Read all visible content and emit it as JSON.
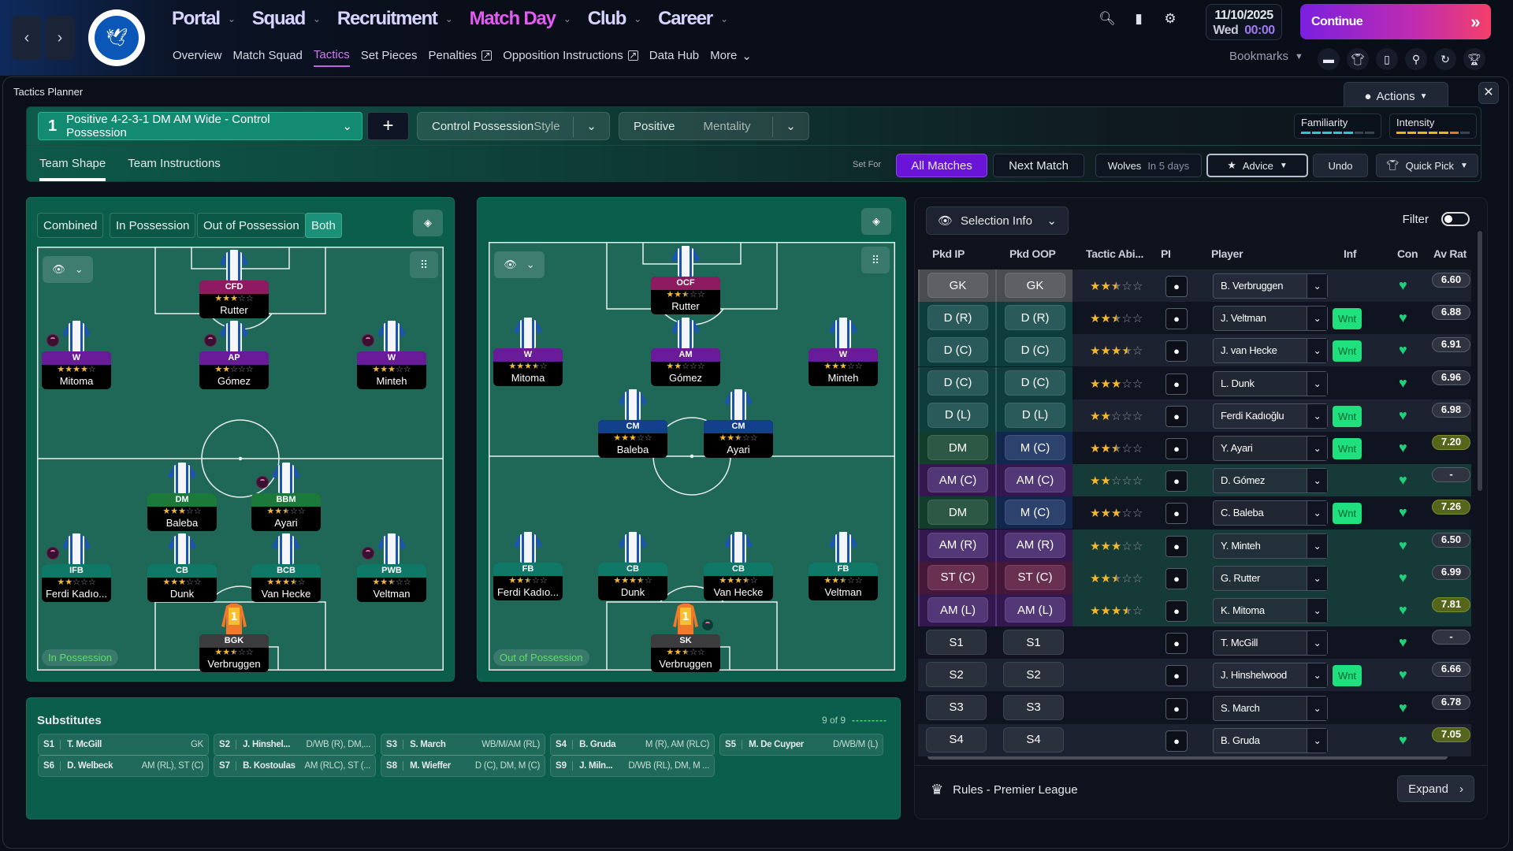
{
  "nav": {
    "back_icon": "chevron-left-icon",
    "forward_icon": "chevron-right-icon",
    "club_logo": "Brighton & Hove Albion",
    "main": [
      {
        "label": "Portal",
        "active": false
      },
      {
        "label": "Squad",
        "active": false
      },
      {
        "label": "Recruitment",
        "active": false
      },
      {
        "label": "Match Day",
        "active": true
      },
      {
        "label": "Club",
        "active": false
      },
      {
        "label": "Career",
        "active": false
      }
    ],
    "sub": [
      {
        "label": "Overview",
        "active": false,
        "external": false
      },
      {
        "label": "Match Squad",
        "active": false,
        "external": false
      },
      {
        "label": "Tactics",
        "active": true,
        "external": false
      },
      {
        "label": "Set Pieces",
        "active": false,
        "external": false
      },
      {
        "label": "Penalties",
        "active": false,
        "external": true
      },
      {
        "label": "Opposition Instructions",
        "active": false,
        "external": true
      },
      {
        "label": "Data Hub",
        "active": false,
        "external": false
      },
      {
        "label": "More",
        "active": false,
        "external": false
      }
    ],
    "date": "11/10/2025",
    "day": "Wed",
    "time": "00:00",
    "continue_label": "Continue",
    "bookmarks_label": "Bookmarks"
  },
  "planner": {
    "title": "Tactics Planner",
    "actions_label": "Actions",
    "tactic": {
      "slot": "1",
      "name": "Positive 4-2-3-1 DM AM Wide - Control Possession"
    },
    "style": {
      "value": "Control Possession",
      "label": "Style"
    },
    "mentality": {
      "value": "Positive",
      "label": "Mentality"
    },
    "familiarity": {
      "label": "Familiarity",
      "level": 5,
      "max": 7
    },
    "intensity": {
      "label": "Intensity",
      "level": 6,
      "max": 7
    },
    "tabs": [
      {
        "label": "Team Shape",
        "active": true
      },
      {
        "label": "Team Instructions",
        "active": false
      }
    ],
    "set_for_label": "Set For",
    "all_matches": "All Matches",
    "next_match": "Next Match",
    "opponent": "Wolves",
    "opponent_when": "In 5 days",
    "advice": "Advice",
    "undo": "Undo",
    "quick_pick": "Quick Pick"
  },
  "view_tabs": [
    "Combined",
    "In Possession",
    "Out of Possession",
    "Both"
  ],
  "view_active": "Both",
  "pitch_ip": {
    "phase_label": "In Possession",
    "players": [
      {
        "role": "CFD",
        "name": "Rutter",
        "stars": 3,
        "line": "att"
      },
      {
        "role": "W",
        "name": "Mitoma",
        "stars": 4,
        "line": "am"
      },
      {
        "role": "AP",
        "name": "Gómez",
        "stars": 2,
        "line": "am"
      },
      {
        "role": "W",
        "name": "Minteh",
        "stars": 3,
        "line": "am"
      },
      {
        "role": "DM",
        "name": "Baleba",
        "stars": 3,
        "line": "dm"
      },
      {
        "role": "BBM",
        "name": "Ayari",
        "stars": 2.5,
        "line": "dm"
      },
      {
        "role": "IFB",
        "name": "Ferdi Kadıo...",
        "stars": 2,
        "line": "def"
      },
      {
        "role": "CB",
        "name": "Dunk",
        "stars": 3,
        "line": "def"
      },
      {
        "role": "BCB",
        "name": "Van Hecke",
        "stars": 3.5,
        "line": "def"
      },
      {
        "role": "PWB",
        "name": "Veltman",
        "stars": 2.5,
        "line": "def"
      },
      {
        "role": "BGK",
        "name": "Verbruggen",
        "stars": 2.5,
        "line": "gk"
      }
    ]
  },
  "pitch_oop": {
    "phase_label": "Out of Possession",
    "players": [
      {
        "role": "OCF",
        "name": "Rutter",
        "stars": 2.5,
        "line": "att"
      },
      {
        "role": "W",
        "name": "Mitoma",
        "stars": 3.5,
        "line": "am"
      },
      {
        "role": "AM",
        "name": "Gómez",
        "stars": 2,
        "line": "am"
      },
      {
        "role": "W",
        "name": "Minteh",
        "stars": 3,
        "line": "am"
      },
      {
        "role": "CM",
        "name": "Baleba",
        "stars": 3,
        "line": "cm"
      },
      {
        "role": "CM",
        "name": "Ayari",
        "stars": 2.5,
        "line": "cm"
      },
      {
        "role": "FB",
        "name": "Ferdi Kadıo...",
        "stars": 2.5,
        "line": "def"
      },
      {
        "role": "CB",
        "name": "Dunk",
        "stars": 3.5,
        "line": "def"
      },
      {
        "role": "CB",
        "name": "Van Hecke",
        "stars": 3.5,
        "line": "def"
      },
      {
        "role": "FB",
        "name": "Veltman",
        "stars": 2.5,
        "line": "def"
      },
      {
        "role": "SK",
        "name": "Verbruggen",
        "stars": 2.5,
        "line": "gk"
      }
    ]
  },
  "substitutes": {
    "title": "Substitutes",
    "count": "9 of 9",
    "items": [
      {
        "slot": "S1",
        "name": "T. McGill",
        "pos": "GK"
      },
      {
        "slot": "S2",
        "name": "J. Hinshel...",
        "pos": "D/WB (R), DM,..."
      },
      {
        "slot": "S3",
        "name": "S. March",
        "pos": "WB/M/AM (RL)"
      },
      {
        "slot": "S4",
        "name": "B. Gruda",
        "pos": "M (R), AM (RLC)"
      },
      {
        "slot": "S5",
        "name": "M. De Cuyper",
        "pos": "D/WB/M (L)"
      },
      {
        "slot": "S6",
        "name": "D. Welbeck",
        "pos": "AM (RL), ST (C)"
      },
      {
        "slot": "S7",
        "name": "B. Kostoulas",
        "pos": "AM (RLC), ST (..."
      },
      {
        "slot": "S8",
        "name": "M. Wieffer",
        "pos": "D (C), DM, M (C)"
      },
      {
        "slot": "S9",
        "name": "J. Miln...",
        "pos": "D/WB (RL), DM, M ..."
      }
    ]
  },
  "selection": {
    "selection_info_label": "Selection Info",
    "filter_label": "Filter",
    "filter_on": false,
    "columns": [
      "Pkd IP",
      "Pkd OOP",
      "Tactic Abi...",
      "PI",
      "Player",
      "Inf",
      "Con",
      "Av Rat"
    ],
    "rows": [
      {
        "ip": "GK",
        "oop": "GK",
        "stars": 2.5,
        "player": "B. Verbruggen",
        "inf": "",
        "rating": "6.60"
      },
      {
        "ip": "D (R)",
        "oop": "D (R)",
        "stars": 2.5,
        "player": "J. Veltman",
        "inf": "Wnt",
        "rating": "6.88"
      },
      {
        "ip": "D (C)",
        "oop": "D (C)",
        "stars": 3.5,
        "player": "J. van Hecke",
        "inf": "Wnt",
        "rating": "6.91"
      },
      {
        "ip": "D (C)",
        "oop": "D (C)",
        "stars": 3,
        "player": "L. Dunk",
        "inf": "",
        "rating": "6.96"
      },
      {
        "ip": "D (L)",
        "oop": "D (L)",
        "stars": 2,
        "player": "Ferdi Kadıoğlu",
        "inf": "Wnt",
        "rating": "6.98"
      },
      {
        "ip": "DM",
        "oop": "M (C)",
        "stars": 2.5,
        "player": "Y. Ayari",
        "inf": "Wnt",
        "rating": "7.20"
      },
      {
        "ip": "AM (C)",
        "oop": "AM (C)",
        "stars": 2,
        "player": "D. Gómez",
        "inf": "",
        "rating": "-"
      },
      {
        "ip": "DM",
        "oop": "M (C)",
        "stars": 3,
        "player": "C. Baleba",
        "inf": "Wnt",
        "rating": "7.26"
      },
      {
        "ip": "AM (R)",
        "oop": "AM (R)",
        "stars": 3,
        "player": "Y. Minteh",
        "inf": "",
        "rating": "6.50"
      },
      {
        "ip": "ST (C)",
        "oop": "ST (C)",
        "stars": 2.5,
        "player": "G. Rutter",
        "inf": "",
        "rating": "6.99"
      },
      {
        "ip": "AM (L)",
        "oop": "AM (L)",
        "stars": 3.5,
        "player": "K. Mitoma",
        "inf": "",
        "rating": "7.81"
      },
      {
        "ip": "S1",
        "oop": "S1",
        "stars": null,
        "player": "T. McGill",
        "inf": "",
        "rating": "-"
      },
      {
        "ip": "S2",
        "oop": "S2",
        "stars": null,
        "player": "J. Hinshelwood",
        "inf": "Wnt",
        "rating": "6.66"
      },
      {
        "ip": "S3",
        "oop": "S3",
        "stars": null,
        "player": "S. March",
        "inf": "",
        "rating": "6.78"
      },
      {
        "ip": "S4",
        "oop": "S4",
        "stars": null,
        "player": "B. Gruda",
        "inf": "",
        "rating": "7.05"
      }
    ],
    "rules_label": "Rules - Premier League",
    "expand_label": "Expand"
  },
  "colors": {
    "accent_purple": "#6a14d8",
    "match_day": "#e35bf0",
    "pitch": "#1f6858",
    "wnt": "#1fe07c",
    "star": "#f5b82e"
  }
}
